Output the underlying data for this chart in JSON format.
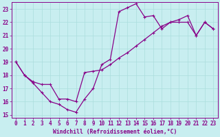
{
  "xlabel": "Windchill (Refroidissement éolien,°C)",
  "ylabel": "",
  "line_color": "#880088",
  "bg_color": "#c8eef0",
  "grid_color": "#aadddd",
  "xlim": [
    -0.5,
    23.5
  ],
  "ylim": [
    14.8,
    23.5
  ],
  "xticks": [
    0,
    1,
    2,
    3,
    4,
    5,
    6,
    7,
    8,
    9,
    10,
    11,
    12,
    13,
    14,
    15,
    16,
    17,
    18,
    19,
    20,
    21,
    22,
    23
  ],
  "yticks": [
    15,
    16,
    17,
    18,
    19,
    20,
    21,
    22,
    23
  ],
  "line1_x": [
    0,
    1,
    2,
    3,
    4,
    5,
    6,
    7,
    8,
    9,
    10,
    11,
    12,
    13,
    14,
    15,
    16,
    17,
    18,
    19,
    20,
    21,
    22,
    23
  ],
  "line1_y": [
    19,
    18,
    17.4,
    16.7,
    16.0,
    15.8,
    15.4,
    15.2,
    16.2,
    17.0,
    18.8,
    19.2,
    22.8,
    23.1,
    23.4,
    22.4,
    22.5,
    21.5,
    22.0,
    22.0,
    22.0,
    21.0,
    22.0,
    21.5
  ],
  "line2_x": [
    0,
    1,
    2,
    3,
    4,
    5,
    6,
    7,
    8,
    9,
    10,
    11,
    12,
    13,
    14,
    15,
    16,
    17,
    18,
    19,
    20,
    21,
    22,
    23
  ],
  "line2_y": [
    19,
    18,
    17.5,
    17.3,
    17.3,
    16.2,
    16.2,
    16.0,
    18.2,
    18.3,
    18.4,
    18.8,
    19.3,
    19.7,
    20.2,
    20.7,
    21.2,
    21.7,
    22.0,
    22.2,
    22.5,
    21.0,
    22.0,
    21.5
  ],
  "tick_fontsize": 5.5,
  "xlabel_fontsize": 5.8,
  "marker": "+",
  "markersize": 3.5,
  "linewidth": 0.9
}
